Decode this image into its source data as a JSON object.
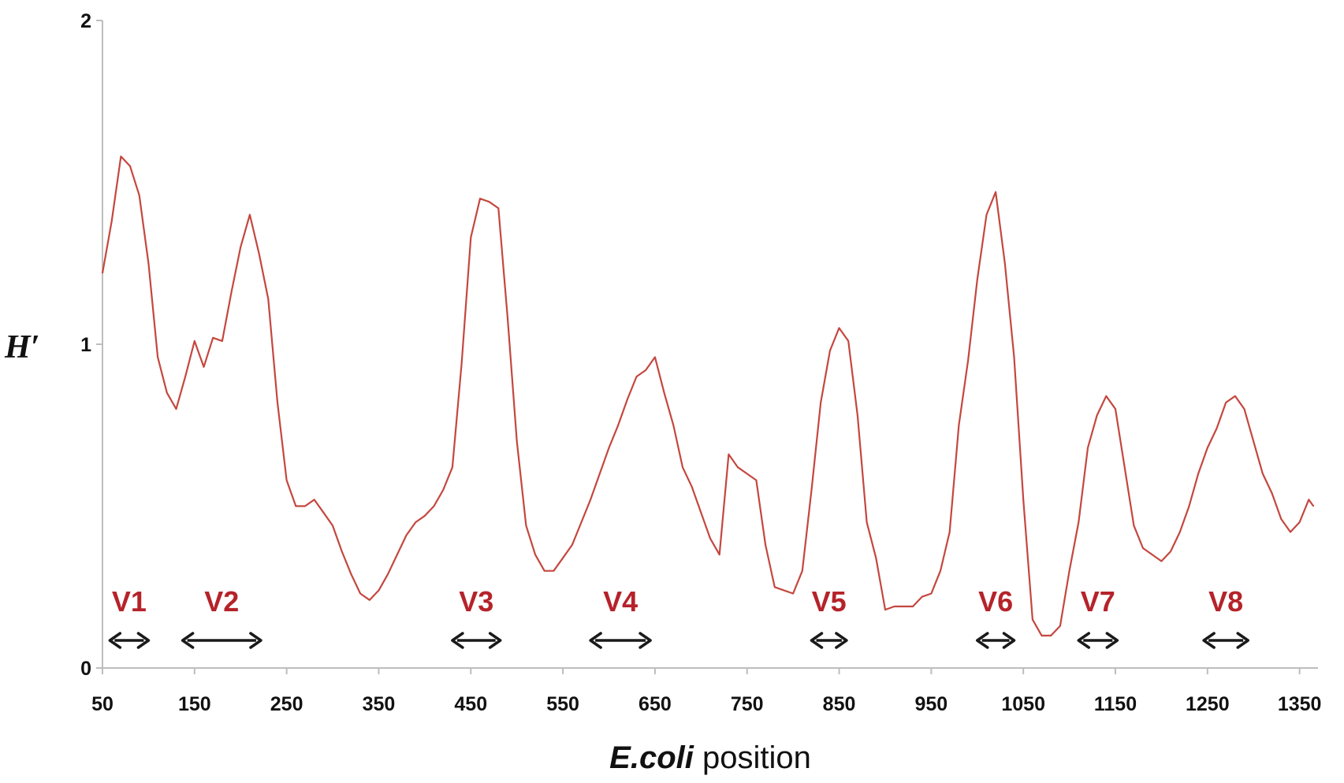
{
  "chart_data": {
    "type": "line",
    "title": "",
    "ylabel": "H′",
    "xlabel_parts": [
      "E.coli",
      " position"
    ],
    "xlim": [
      50,
      1370
    ],
    "ylim": [
      0,
      2
    ],
    "x_ticks": [
      50,
      150,
      250,
      350,
      450,
      550,
      650,
      750,
      850,
      950,
      1050,
      1150,
      1250,
      1350
    ],
    "x_tick_labels": [
      "50",
      "150",
      "250",
      "350",
      "450",
      "550",
      "650",
      "750",
      "850",
      "950",
      "1050",
      "1150",
      "1250",
      "1350"
    ],
    "y_ticks": [
      0,
      1,
      2
    ],
    "y_tick_labels": [
      "0",
      "1",
      "2"
    ],
    "grid": false,
    "line_color": "#c4473f",
    "series": [
      {
        "x": [
          50,
          60,
          70,
          80,
          90,
          100,
          110,
          120,
          130,
          140,
          150,
          160,
          170,
          180,
          190,
          200,
          210,
          220,
          230,
          240,
          250,
          260,
          270,
          280,
          290,
          300,
          310,
          320,
          330,
          340,
          350,
          360,
          370,
          380,
          390,
          400,
          410,
          420,
          430,
          440,
          450,
          460,
          470,
          480,
          490,
          500,
          510,
          520,
          530,
          540,
          550,
          560,
          570,
          580,
          590,
          600,
          610,
          620,
          630,
          640,
          650,
          660,
          670,
          680,
          690,
          700,
          710,
          720,
          730,
          740,
          750,
          760,
          770,
          780,
          790,
          800,
          810,
          820,
          830,
          840,
          850,
          860,
          870,
          880,
          890,
          900,
          910,
          920,
          930,
          940,
          950,
          960,
          970,
          980,
          990,
          1000,
          1010,
          1020,
          1030,
          1040,
          1050,
          1060,
          1070,
          1080,
          1090,
          1100,
          1110,
          1120,
          1130,
          1140,
          1150,
          1160,
          1170,
          1180,
          1190,
          1200,
          1210,
          1220,
          1230,
          1240,
          1250,
          1260,
          1270,
          1280,
          1290,
          1300,
          1310,
          1320,
          1330,
          1340,
          1350,
          1360,
          1365
        ],
        "values": [
          1.22,
          1.38,
          1.58,
          1.55,
          1.46,
          1.25,
          0.96,
          0.85,
          0.8,
          0.9,
          1.01,
          0.93,
          1.02,
          1.01,
          1.16,
          1.3,
          1.4,
          1.28,
          1.14,
          0.82,
          0.58,
          0.5,
          0.5,
          0.52,
          0.48,
          0.44,
          0.36,
          0.29,
          0.23,
          0.21,
          0.24,
          0.29,
          0.35,
          0.41,
          0.45,
          0.47,
          0.5,
          0.55,
          0.62,
          0.94,
          1.33,
          1.45,
          1.44,
          1.42,
          1.08,
          0.7,
          0.44,
          0.35,
          0.3,
          0.3,
          0.34,
          0.38,
          0.45,
          0.52,
          0.6,
          0.68,
          0.75,
          0.83,
          0.9,
          0.92,
          0.96,
          0.85,
          0.75,
          0.62,
          0.56,
          0.48,
          0.4,
          0.35,
          0.66,
          0.62,
          0.6,
          0.58,
          0.38,
          0.25,
          0.24,
          0.23,
          0.3,
          0.55,
          0.82,
          0.98,
          1.05,
          1.01,
          0.78,
          0.45,
          0.34,
          0.18,
          0.19,
          0.19,
          0.19,
          0.22,
          0.23,
          0.3,
          0.42,
          0.75,
          0.95,
          1.2,
          1.4,
          1.47,
          1.25,
          0.96,
          0.52,
          0.15,
          0.1,
          0.1,
          0.13,
          0.3,
          0.45,
          0.68,
          0.78,
          0.84,
          0.8,
          0.62,
          0.44,
          0.37,
          0.35,
          0.33,
          0.36,
          0.42,
          0.5,
          0.6,
          0.68,
          0.74,
          0.82,
          0.84,
          0.8,
          0.7,
          0.6,
          0.54,
          0.46,
          0.42,
          0.45,
          0.52,
          0.5
        ]
      }
    ],
    "regions": [
      {
        "label": "V1",
        "start": 58,
        "end": 100
      },
      {
        "label": "V2",
        "start": 137,
        "end": 222
      },
      {
        "label": "V3",
        "start": 430,
        "end": 482
      },
      {
        "label": "V4",
        "start": 580,
        "end": 645
      },
      {
        "label": "V5",
        "start": 820,
        "end": 858
      },
      {
        "label": "V6",
        "start": 1000,
        "end": 1040
      },
      {
        "label": "V7",
        "start": 1110,
        "end": 1152
      },
      {
        "label": "V8",
        "start": 1246,
        "end": 1294
      }
    ],
    "region_color": "#b5232a",
    "arrow_color": "#1a1a1a"
  }
}
